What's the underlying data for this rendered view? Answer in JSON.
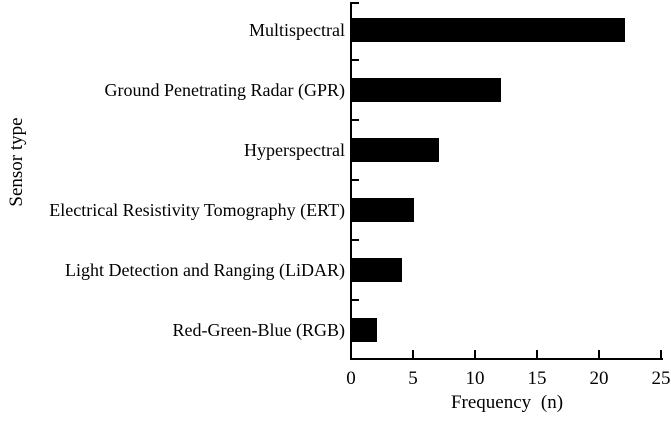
{
  "figure": {
    "background_color": "#ffffff",
    "bar_color": "#000000",
    "axis_color": "#000000",
    "text_color": "#000000"
  },
  "chart_data": {
    "type": "bar",
    "orientation": "horizontal",
    "title": "",
    "categories": [
      "Multispectral",
      "Ground Penetrating Radar (GPR)",
      "Hyperspectral",
      "Electrical Resistivity Tomography (ERT)",
      "Light Detection and Ranging (LiDAR)",
      "Red-Green-Blue (RGB)"
    ],
    "values": [
      22,
      12,
      7,
      5,
      4,
      2
    ],
    "xlabel": "Frequency (n)",
    "ylabel": "Sensor type",
    "xlim": [
      0,
      25
    ],
    "xticks": [
      0,
      5,
      10,
      15,
      20,
      25
    ],
    "grid": false,
    "legend": "none"
  }
}
